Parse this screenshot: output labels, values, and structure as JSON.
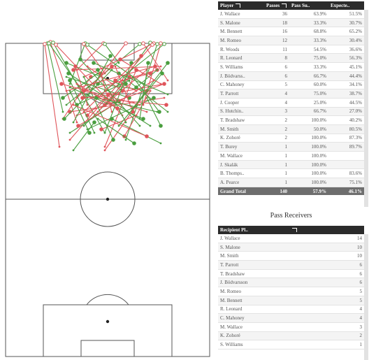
{
  "passers_table": {
    "headers": [
      "Player",
      "Passes",
      "Pass Su..",
      "Expecte.."
    ],
    "rows": [
      [
        "J. Wallace",
        "36",
        "63.9%",
        "51.5%"
      ],
      [
        "S. Malone",
        "18",
        "33.3%",
        "30.7%"
      ],
      [
        "M. Bennett",
        "16",
        "68.8%",
        "65.2%"
      ],
      [
        "M. Romeo",
        "12",
        "33.3%",
        "30.4%"
      ],
      [
        "R. Woods",
        "11",
        "54.5%",
        "36.6%"
      ],
      [
        "R. Leonard",
        "8",
        "75.0%",
        "56.3%"
      ],
      [
        "S. Williams",
        "6",
        "33.3%",
        "45.1%"
      ],
      [
        "J. Bödvarss..",
        "6",
        "66.7%",
        "44.4%"
      ],
      [
        "C. Mahoney",
        "5",
        "60.0%",
        "34.1%"
      ],
      [
        "T. Parrott",
        "4",
        "75.0%",
        "38.7%"
      ],
      [
        "J. Cooper",
        "4",
        "25.0%",
        "44.5%"
      ],
      [
        "S. Hutchin..",
        "3",
        "66.7%",
        "27.0%"
      ],
      [
        "T. Bradshaw",
        "2",
        "100.0%",
        "40.2%"
      ],
      [
        "M. Smith",
        "2",
        "50.0%",
        "80.5%"
      ],
      [
        "K. Zohoré",
        "2",
        "100.0%",
        "87.3%"
      ],
      [
        "T. Burey",
        "1",
        "100.0%",
        "89.7%"
      ],
      [
        "M. Wallace",
        "1",
        "100.0%",
        ""
      ],
      [
        "J. Skalák",
        "1",
        "100.0%",
        ""
      ],
      [
        "B. Thomps..",
        "1",
        "100.0%",
        "83.6%"
      ],
      [
        "A. Pearce",
        "1",
        "100.0%",
        "75.1%"
      ]
    ],
    "total": [
      "Grand Total",
      "140",
      "57.9%",
      "46.1%"
    ]
  },
  "receivers": {
    "title": "Pass Receivers",
    "headers": [
      "Recipient Pl..",
      ""
    ],
    "rows": [
      [
        "J. Wallace",
        "14"
      ],
      [
        "S. Malone",
        "10"
      ],
      [
        "M. Smith",
        "10"
      ],
      [
        "T. Parrott",
        "6"
      ],
      [
        "T. Bradshaw",
        "6"
      ],
      [
        "J. Bödvarsson",
        "6"
      ],
      [
        "M. Romeo",
        "5"
      ],
      [
        "M. Bennett",
        "5"
      ],
      [
        "R. Leonard",
        "4"
      ],
      [
        "C. Mahoney",
        "4"
      ],
      [
        "M. Wallace",
        "3"
      ],
      [
        "K. Zohoré",
        "2"
      ],
      [
        "S. Williams",
        "1"
      ]
    ]
  },
  "pass_map": {
    "success_color": "#4a9e3f",
    "fail_color": "#e0555b",
    "passes": [
      [
        68,
        62,
        90,
        160,
        0
      ],
      [
        72,
        60,
        110,
        175,
        1
      ],
      [
        76,
        61,
        150,
        190,
        0
      ],
      [
        64,
        63,
        85,
        210,
        1
      ],
      [
        70,
        62,
        125,
        140,
        0
      ],
      [
        80,
        64,
        175,
        165,
        1
      ],
      [
        122,
        62,
        100,
        120,
        0
      ],
      [
        120,
        63,
        150,
        105,
        1
      ],
      [
        125,
        64,
        205,
        120,
        0
      ],
      [
        148,
        62,
        110,
        100,
        1
      ],
      [
        150,
        63,
        170,
        90,
        0
      ],
      [
        180,
        62,
        135,
        120,
        1
      ],
      [
        200,
        63,
        95,
        150,
        0
      ],
      [
        205,
        62,
        240,
        115,
        1
      ],
      [
        215,
        61,
        160,
        140,
        0
      ],
      [
        220,
        62,
        120,
        110,
        1
      ],
      [
        225,
        63,
        180,
        200,
        0
      ],
      [
        230,
        62,
        205,
        150,
        1
      ],
      [
        235,
        63,
        150,
        130,
        0
      ],
      [
        218,
        64,
        100,
        200,
        1
      ],
      [
        95,
        90,
        170,
        120,
        0
      ],
      [
        105,
        100,
        230,
        95,
        1
      ],
      [
        115,
        85,
        200,
        180,
        0
      ],
      [
        130,
        110,
        90,
        170,
        1
      ],
      [
        140,
        120,
        215,
        130,
        0
      ],
      [
        160,
        95,
        110,
        140,
        1
      ],
      [
        170,
        105,
        240,
        160,
        0
      ],
      [
        175,
        130,
        125,
        95,
        1
      ],
      [
        185,
        140,
        95,
        110,
        0
      ],
      [
        195,
        100,
        150,
        210,
        1
      ],
      [
        90,
        140,
        140,
        105,
        0
      ],
      [
        100,
        160,
        235,
        140,
        1
      ],
      [
        110,
        150,
        185,
        115,
        0
      ],
      [
        125,
        165,
        150,
        140,
        1
      ],
      [
        135,
        175,
        105,
        215,
        0
      ],
      [
        150,
        150,
        210,
        100,
        1
      ],
      [
        160,
        170,
        230,
        205,
        0
      ],
      [
        165,
        115,
        195,
        130,
        1
      ],
      [
        180,
        120,
        120,
        180,
        0
      ],
      [
        190,
        160,
        165,
        95,
        1
      ],
      [
        205,
        170,
        100,
        125,
        0
      ],
      [
        210,
        130,
        150,
        215,
        1
      ],
      [
        220,
        140,
        125,
        185,
        0
      ],
      [
        225,
        100,
        175,
        115,
        1
      ],
      [
        230,
        180,
        210,
        140,
        0
      ],
      [
        235,
        120,
        110,
        165,
        1
      ],
      [
        100,
        115,
        135,
        190,
        0
      ],
      [
        120,
        130,
        210,
        160,
        1
      ],
      [
        140,
        100,
        180,
        175,
        0
      ],
      [
        155,
        135,
        235,
        120,
        1
      ],
      [
        170,
        145,
        100,
        190,
        0
      ],
      [
        185,
        110,
        140,
        160,
        1
      ],
      [
        195,
        125,
        225,
        100,
        0
      ],
      [
        215,
        105,
        120,
        130,
        1
      ],
      [
        240,
        90,
        190,
        155,
        0
      ],
      [
        88,
        120,
        200,
        150,
        1
      ],
      [
        92,
        170,
        160,
        100,
        0
      ],
      [
        112,
        180,
        220,
        115,
        1
      ],
      [
        128,
        190,
        100,
        130,
        0
      ],
      [
        145,
        185,
        195,
        165,
        1
      ],
      [
        162,
        200,
        120,
        110,
        0
      ],
      [
        178,
        195,
        215,
        130,
        1
      ],
      [
        192,
        205,
        140,
        170,
        0
      ],
      [
        210,
        195,
        105,
        150,
        1
      ],
      [
        228,
        160,
        190,
        110,
        0
      ],
      [
        238,
        150,
        130,
        140,
        1
      ],
      [
        98,
        105,
        215,
        180,
        0
      ],
      [
        108,
        95,
        125,
        150,
        1
      ],
      [
        134,
        90,
        240,
        135,
        0
      ],
      [
        144,
        105,
        160,
        160,
        1
      ],
      [
        158,
        80,
        105,
        175,
        0
      ],
      [
        172,
        85,
        230,
        120,
        1
      ],
      [
        188,
        90,
        150,
        190,
        0
      ],
      [
        202,
        80,
        120,
        160,
        1
      ],
      [
        212,
        90,
        200,
        170,
        0
      ],
      [
        222,
        95,
        95,
        130,
        1
      ],
      [
        232,
        105,
        170,
        180,
        0
      ],
      [
        118,
        140,
        170,
        135,
        1
      ],
      [
        138,
        140,
        225,
        160,
        0
      ],
      [
        168,
        155,
        110,
        120,
        1
      ]
    ]
  }
}
